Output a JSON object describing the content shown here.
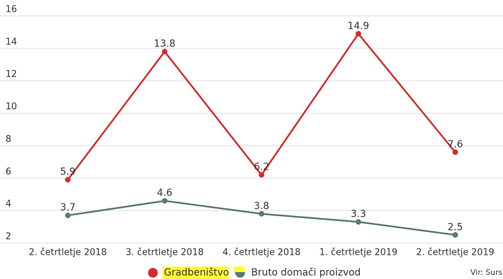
{
  "chart_data": {
    "type": "line",
    "categories": [
      "2. četrtletje 2018",
      "3. četrtletje 2018",
      "4. četrtletje 2018",
      "1. četrtletje 2019",
      "2. četrtletje 2019"
    ],
    "series": [
      {
        "name": "Gradbeništvo",
        "color": "#d52b2b",
        "values": [
          5.9,
          13.8,
          6.2,
          14.9,
          7.6
        ]
      },
      {
        "name": "Bruto domači proizvod",
        "color": "#5b7876",
        "values": [
          3.7,
          4.6,
          3.8,
          3.3,
          2.5
        ]
      }
    ],
    "ylim": [
      2,
      16
    ],
    "yticks": [
      2,
      4,
      6,
      8,
      10,
      12,
      14,
      16
    ],
    "grid": true,
    "source": "Vir: Surs"
  }
}
